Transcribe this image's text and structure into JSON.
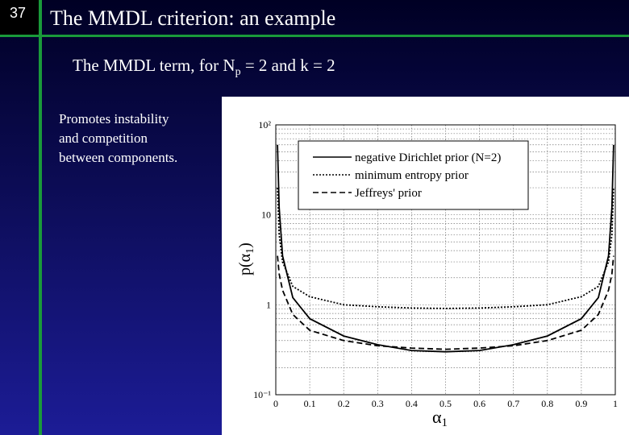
{
  "slide_number": "37",
  "title": "The MMDL  criterion: an example",
  "subtitle": {
    "before": "The MMDL term, for N",
    "sub": "p",
    "after": " = 2  and k = 2"
  },
  "bullet": [
    "Promotes instability",
    "and  competition",
    "between components."
  ],
  "chart_data": {
    "type": "line",
    "xlabel": {
      "symbol": "α",
      "sub": "1"
    },
    "ylabel": {
      "before": "p(α",
      "sub": "1",
      "after": ")"
    },
    "x": [
      0.005,
      0.01,
      0.02,
      0.05,
      0.1,
      0.2,
      0.3,
      0.4,
      0.5,
      0.6,
      0.7,
      0.8,
      0.9,
      0.95,
      0.98,
      0.99,
      0.995
    ],
    "series": [
      {
        "name": "negative Dirichlet prior (N=2)",
        "color": "#000000",
        "dash": "solid",
        "values": [
          60,
          12,
          3.5,
          1.2,
          0.7,
          0.45,
          0.36,
          0.31,
          0.3,
          0.31,
          0.36,
          0.45,
          0.7,
          1.2,
          3.5,
          12,
          60
        ]
      },
      {
        "name": "minimum entropy prior",
        "color": "#000000",
        "dash": "dotted",
        "values": [
          20,
          6,
          3,
          1.6,
          1.23,
          1.0,
          0.95,
          0.92,
          0.91,
          0.92,
          0.95,
          1.0,
          1.23,
          1.6,
          3,
          6,
          20
        ]
      },
      {
        "name": "Jeffreys' prior",
        "color": "#000000",
        "dash": "dashed",
        "values": [
          3.5,
          2.2,
          1.45,
          0.78,
          0.52,
          0.4,
          0.35,
          0.33,
          0.32,
          0.33,
          0.35,
          0.4,
          0.52,
          0.78,
          1.45,
          2.2,
          3.5
        ]
      }
    ],
    "xlim": [
      0,
      1
    ],
    "xticks": [
      0,
      0.1,
      0.2,
      0.3,
      0.4,
      0.5,
      0.6,
      0.7,
      0.8,
      0.9,
      1
    ],
    "ylim": [
      0.1,
      100
    ],
    "yticks": [
      {
        "value": 100,
        "label": "10²"
      },
      10,
      1,
      {
        "value": 0.1,
        "label": "10⁻¹"
      }
    ],
    "yminorticks": [
      0.2,
      0.3,
      0.4,
      0.5,
      0.6,
      0.7,
      0.8,
      0.9,
      2,
      3,
      4,
      5,
      6,
      7,
      8,
      9,
      20,
      30,
      40,
      50,
      60,
      70,
      80,
      90
    ],
    "ylog": true,
    "grid": true,
    "legend": "top-right"
  }
}
